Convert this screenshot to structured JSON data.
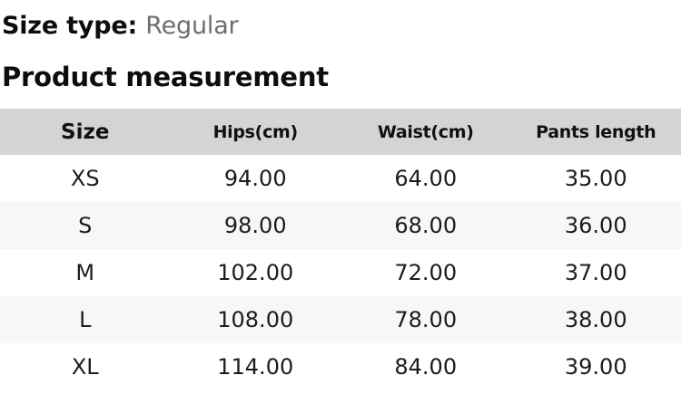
{
  "page": {
    "size_type_label": "Size type:",
    "size_type_value": "Regular",
    "section_title": "Product measurement"
  },
  "table": {
    "columns": [
      "Size",
      "Hips(cm)",
      "Waist(cm)",
      "Pants length"
    ],
    "rows": [
      {
        "size": "XS",
        "hips": "94.00",
        "waist": "64.00",
        "pants_length": "35.00"
      },
      {
        "size": "S",
        "hips": "98.00",
        "waist": "68.00",
        "pants_length": "36.00"
      },
      {
        "size": "M",
        "hips": "102.00",
        "waist": "72.00",
        "pants_length": "37.00"
      },
      {
        "size": "L",
        "hips": "108.00",
        "waist": "78.00",
        "pants_length": "38.00"
      },
      {
        "size": "XL",
        "hips": "114.00",
        "waist": "84.00",
        "pants_length": "39.00"
      }
    ]
  },
  "colors": {
    "header_bg": "#d4d4d4",
    "row_alt_bg": "#f7f7f7",
    "heading_text": "#0d0d0d",
    "value_text": "#1c1c1c",
    "muted_text": "#6e6e6e"
  }
}
